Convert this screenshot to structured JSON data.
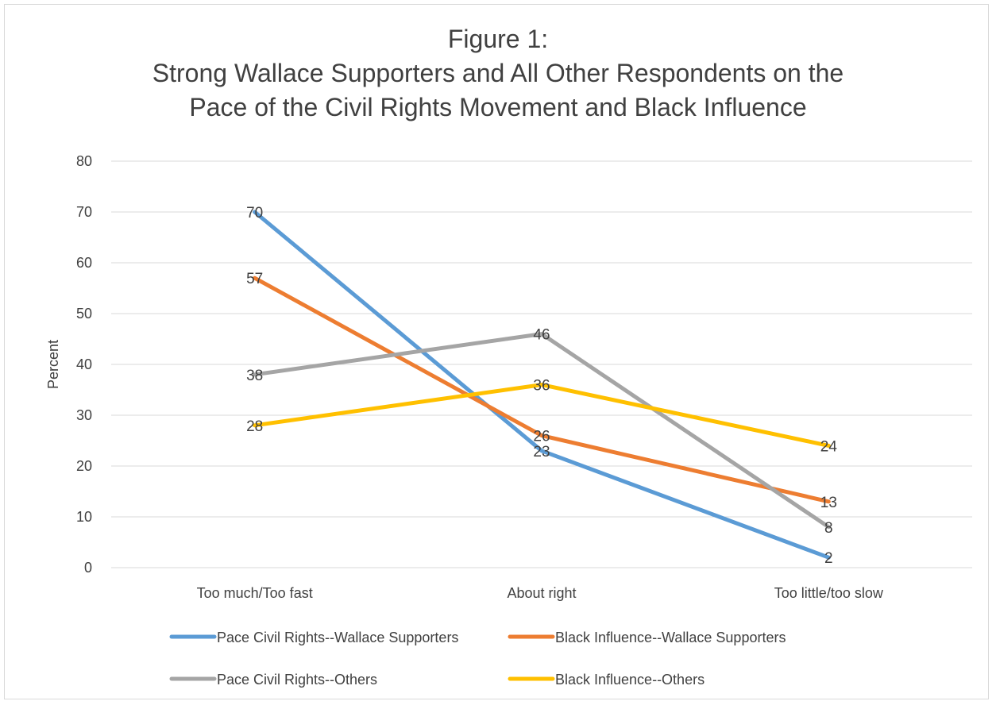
{
  "chart_data": {
    "type": "line",
    "title_lines": [
      "Figure 1:",
      "Strong Wallace Supporters and All Other Respondents on the",
      "Pace of the Civil Rights Movement and Black Influence"
    ],
    "ylabel": "Percent",
    "xlabel": "",
    "categories": [
      "Too much/Too fast",
      "About right",
      "Too little/too slow"
    ],
    "ylim": [
      0,
      80
    ],
    "yticks": [
      0,
      10,
      20,
      30,
      40,
      50,
      60,
      70,
      80
    ],
    "grid": true,
    "legend_position": "bottom",
    "series": [
      {
        "name": "Pace Civil Rights--Wallace Supporters",
        "color": "#5b9bd5",
        "values": [
          70,
          23,
          2
        ]
      },
      {
        "name": "Black Influence--Wallace Supporters",
        "color": "#ed7d31",
        "values": [
          57,
          26,
          13
        ]
      },
      {
        "name": "Pace Civil Rights--Others",
        "color": "#a5a5a5",
        "values": [
          38,
          46,
          8
        ]
      },
      {
        "name": "Black Influence--Others",
        "color": "#ffc000",
        "values": [
          28,
          36,
          24
        ]
      }
    ]
  }
}
